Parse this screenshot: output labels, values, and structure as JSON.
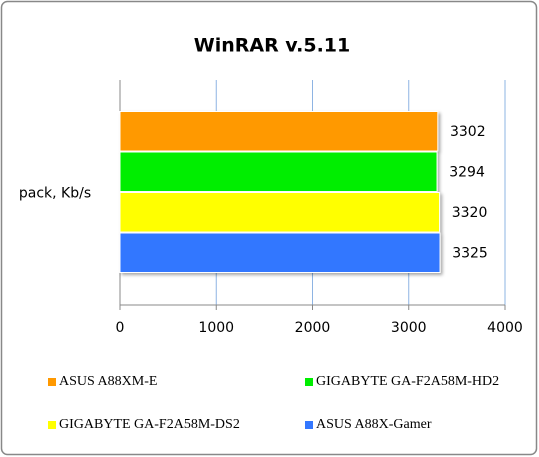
{
  "chart_data": {
    "type": "bar",
    "orientation": "horizontal",
    "title": "WinRAR v.5.11",
    "categories": [
      "pack, Kb/s"
    ],
    "series": [
      {
        "name": "ASUS A88XM-E",
        "color": "#ff9900",
        "values": [
          3302
        ]
      },
      {
        "name": "GIGABYTE GA-F2A58M-HD2",
        "color": "#00ee00",
        "values": [
          3294
        ]
      },
      {
        "name": "GIGABYTE GA-F2A58M-DS2",
        "color": "#ffff00",
        "values": [
          3320
        ]
      },
      {
        "name": "ASUS A88X-Gamer",
        "color": "#3377ff",
        "values": [
          3325
        ]
      }
    ],
    "xlim": [
      0,
      4000
    ],
    "xticks": [
      0,
      1000,
      2000,
      3000,
      4000
    ],
    "grid": true,
    "legend": "bottom"
  }
}
